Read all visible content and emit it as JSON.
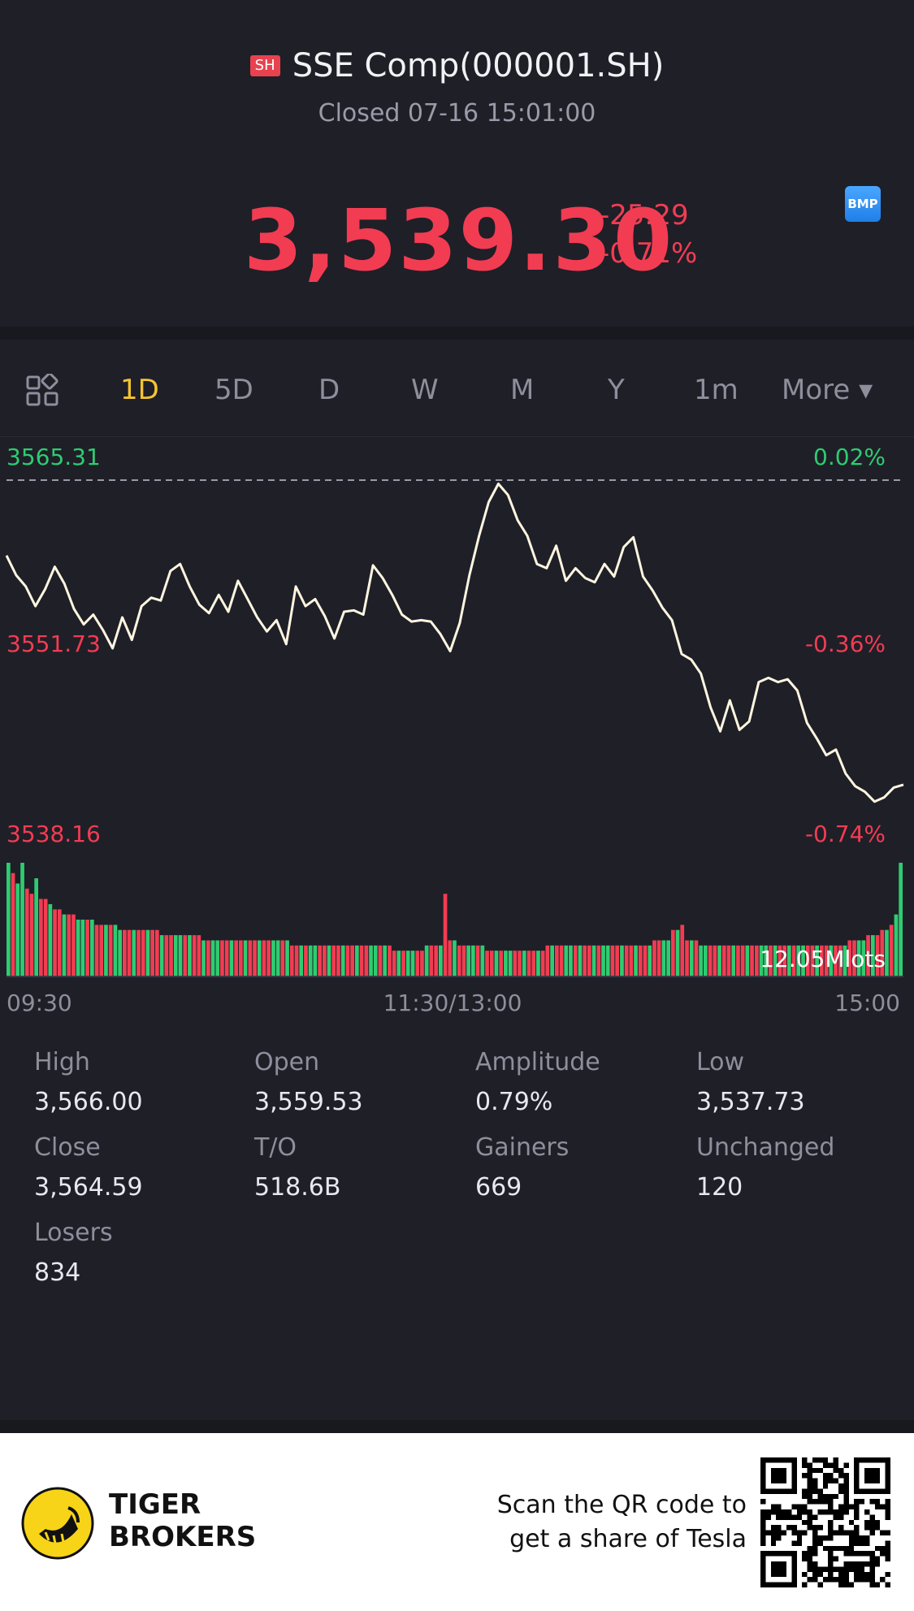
{
  "header": {
    "exchange_badge": "SH",
    "title": "SSE Comp(000001.SH)",
    "status": "Closed 07-16 15:01:00",
    "price": "3,539.30",
    "change": "-25.29",
    "change_pct": "-0.71%",
    "bmp_badge": "BMP"
  },
  "colors": {
    "up": "#2ecc71",
    "down": "#f23c52",
    "accent": "#f4c430",
    "bg": "#1f1f28"
  },
  "tabs": [
    {
      "label": "1D",
      "active": true
    },
    {
      "label": "5D"
    },
    {
      "label": "D"
    },
    {
      "label": "W"
    },
    {
      "label": "M"
    },
    {
      "label": "Y"
    },
    {
      "label": "1m"
    },
    {
      "label": "More ▾"
    }
  ],
  "chart_data": {
    "type": "line",
    "labels": {
      "y_high": "3565.31",
      "y_mid": "3551.73",
      "y_low": "3538.16",
      "pct_high": "0.02%",
      "pct_mid": "-0.36%",
      "pct_low": "-0.74%",
      "volume": "12.05Mlots"
    },
    "x_ticks": [
      "09:30",
      "11:30/13:00",
      "15:00"
    ],
    "ylim": [
      3538.16,
      3565.31
    ],
    "prev_close": 3564.59,
    "series": [
      {
        "values": [
          3559.2,
          3557.8,
          3557.0,
          3555.6,
          3556.8,
          3558.4,
          3557.2,
          3555.4,
          3554.3,
          3555.0,
          3553.9,
          3552.6,
          3554.8,
          3553.2,
          3555.6,
          3556.2,
          3556.0,
          3558.1,
          3558.6,
          3557.0,
          3555.7,
          3555.1,
          3556.4,
          3555.2,
          3557.4,
          3556.1,
          3554.8,
          3553.8,
          3554.6,
          3552.9,
          3557.0,
          3555.6,
          3556.1,
          3554.9,
          3553.3,
          3555.2,
          3555.3,
          3555.0,
          3558.5,
          3557.6,
          3556.4,
          3555.0,
          3554.5,
          3554.6,
          3554.5,
          3553.6,
          3552.4,
          3554.4,
          3557.8,
          3560.6,
          3563.0,
          3564.3,
          3563.5,
          3561.7,
          3560.6,
          3558.6,
          3558.3,
          3559.9,
          3557.4,
          3558.3,
          3557.6,
          3557.3,
          3558.6,
          3557.7,
          3559.8,
          3560.5,
          3557.7,
          3556.7,
          3555.5,
          3554.6,
          3552.2,
          3551.8,
          3550.8,
          3548.4,
          3546.7,
          3548.9,
          3546.8,
          3547.4,
          3550.2,
          3550.5,
          3550.2,
          3550.4,
          3549.6,
          3547.3,
          3546.2,
          3545.0,
          3545.4,
          3543.7,
          3542.8,
          3542.4,
          3541.7,
          3542.0,
          3542.7,
          3542.9
        ]
      }
    ],
    "volume": [
      22,
      20,
      18,
      22,
      17,
      16,
      19,
      15,
      15,
      14,
      13,
      13,
      12,
      12,
      12,
      11,
      11,
      11,
      11,
      10,
      10,
      10,
      10,
      10,
      9,
      9,
      9,
      9,
      9,
      9,
      9,
      9,
      9,
      8,
      8,
      8,
      8,
      8,
      8,
      8,
      8,
      8,
      7,
      7,
      7,
      7,
      7,
      7,
      7,
      7,
      7,
      7,
      7,
      7,
      7,
      7,
      7,
      7,
      7,
      7,
      7,
      6,
      6,
      6,
      6,
      6,
      6,
      6,
      6,
      6,
      6,
      6,
      6,
      6,
      6,
      6,
      6,
      6,
      6,
      6,
      6,
      6,
      6,
      5,
      5,
      5,
      5,
      5,
      5,
      5,
      6,
      6,
      6,
      6,
      16,
      7,
      7,
      6,
      6,
      6,
      6,
      6,
      6,
      5,
      5,
      5,
      5,
      5,
      5,
      5,
      5,
      5,
      5,
      5,
      5,
      5,
      6,
      6,
      6,
      6,
      6,
      6,
      6,
      6,
      6,
      6,
      6,
      6,
      6,
      6,
      6,
      6,
      6,
      6,
      6,
      6,
      6,
      6,
      6,
      7,
      7,
      7,
      7,
      9,
      9,
      10,
      7,
      7,
      7,
      6,
      6,
      6,
      6,
      6,
      6,
      6,
      6,
      6,
      6,
      6,
      6,
      6,
      6,
      6,
      6,
      6,
      6,
      6,
      6,
      6,
      6,
      6,
      6,
      6,
      6,
      6,
      6,
      6,
      6,
      6,
      6,
      7,
      7,
      7,
      7,
      8,
      8,
      8,
      9,
      9,
      10,
      12,
      22
    ]
  },
  "stats": [
    {
      "label": "High",
      "value": "3,566.00"
    },
    {
      "label": "Open",
      "value": "3,559.53"
    },
    {
      "label": "Amplitude",
      "value": "0.79%"
    },
    {
      "label": "Low",
      "value": "3,537.73"
    },
    {
      "label": "Close",
      "value": "3,564.59"
    },
    {
      "label": "T/O",
      "value": "518.6B"
    },
    {
      "label": "Gainers",
      "value": "669"
    },
    {
      "label": "Unchanged",
      "value": "120"
    },
    {
      "label": "Losers",
      "value": "834"
    }
  ],
  "footer": {
    "brand_line1": "TIGER",
    "brand_line2": "BROKERS",
    "scan_line1": "Scan the QR code to",
    "scan_line2": "get a share of Tesla"
  }
}
